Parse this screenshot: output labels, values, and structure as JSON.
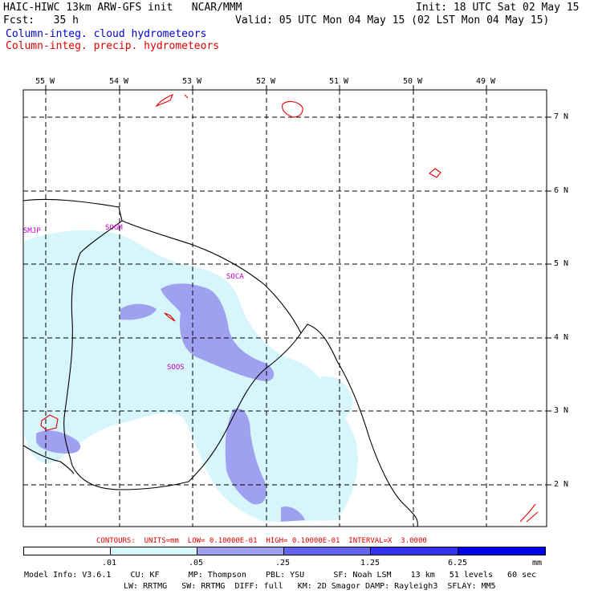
{
  "header": {
    "title_left": "HAIC-HIWC 13km ARW-GFS init   NCAR/MMM",
    "fcst": "Fcst:   35 h",
    "init": "Init: 18 UTC Sat 02 May 15",
    "valid": "Valid: 05 UTC Mon 04 May 15 (02 LST Mon 04 May 15)",
    "legend_cloud": "Column-integ. cloud hydrometeors",
    "legend_precip": "Column-integ. precip. hydrometeors",
    "colors": {
      "cloud": "#0000cc",
      "precip": "#e00000"
    }
  },
  "map": {
    "lon_labels": [
      "55 W",
      "54 W",
      "53 W",
      "52 W",
      "51 W",
      "50 W",
      "49 W"
    ],
    "lat_labels": [
      "7 N",
      "6 N",
      "5 N",
      "4 N",
      "3 N",
      "2 N"
    ],
    "stations": [
      "SMJP",
      "SOGM",
      "SOCA",
      "SOOS"
    ],
    "fill_colors": [
      "#d6f6fb",
      "#a0a0f0",
      "#6464f0",
      "#3232f0",
      "#0000f0"
    ]
  },
  "footer": {
    "contours": "CONTOURS:  UNITS=mm  LOW= 0.10000E-01  HIGH= 0.10000E-01  INTERVAL=X  3.0000",
    "colorbar_labels": [
      ".01",
      ".05",
      ".25",
      "1.25",
      "6.25",
      "mm"
    ],
    "model_line1": "Model Info: V3.6.1    CU: KF      MP: Thompson    PBL: YSU      SF: Noah LSM    13 km   51 levels   60 sec",
    "model_line2": "LW: RRTMG   SW: RRTMG  DIFF: full   KM: 2D Smagor DAMP: Rayleigh3  SFLAY: MM5"
  }
}
